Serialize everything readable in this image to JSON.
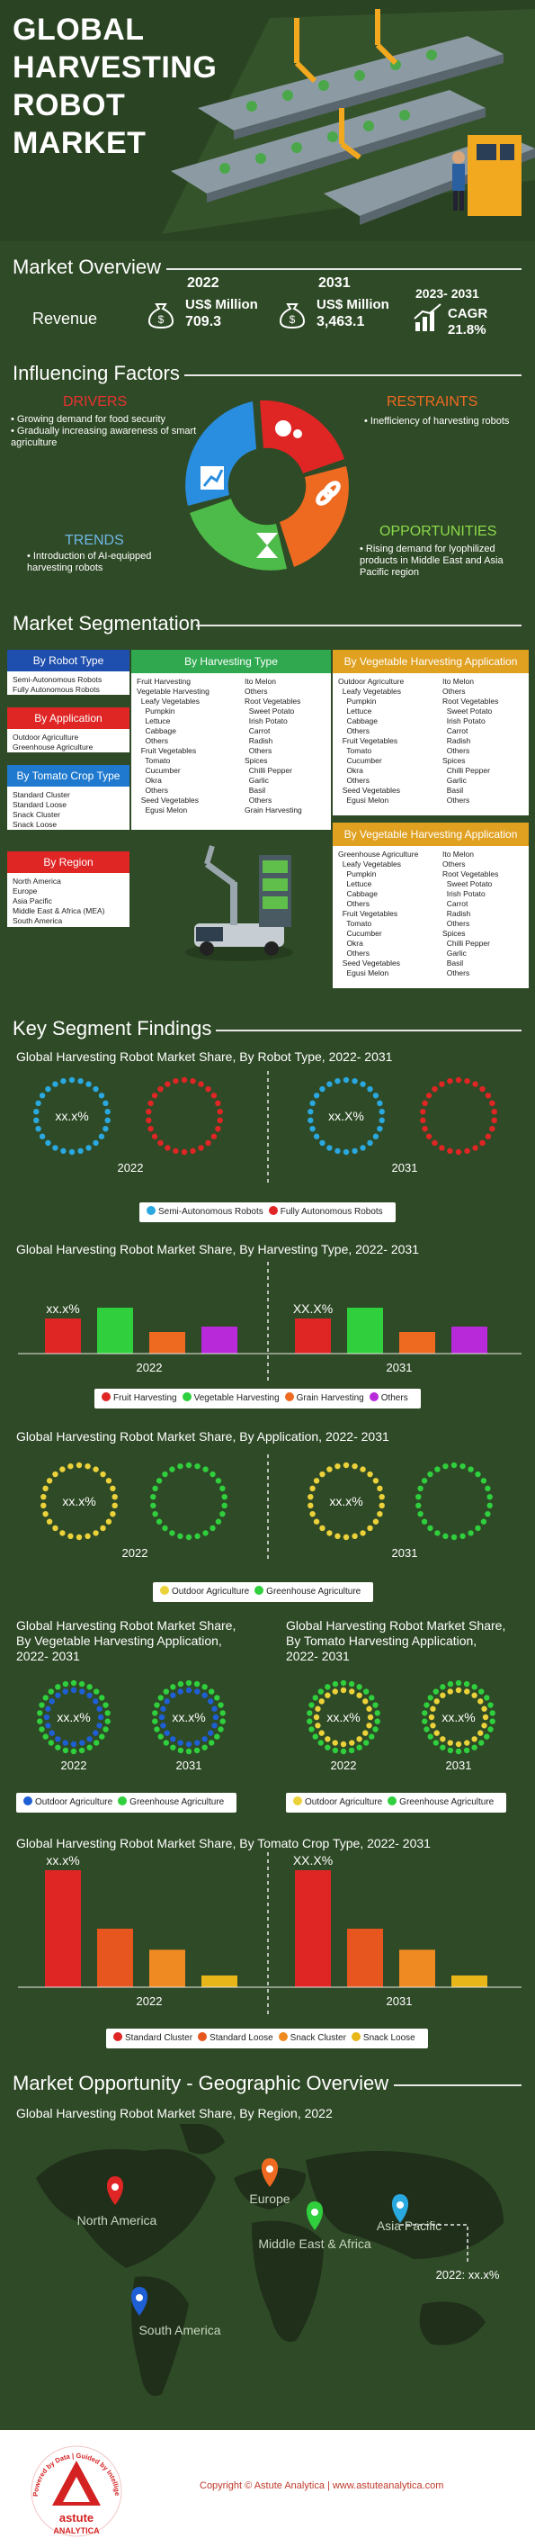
{
  "title_lines": [
    "GLOBAL",
    "HARVESTING",
    "ROBOT",
    "MARKET"
  ],
  "overview": {
    "heading": "Market Overview",
    "revenue_label": "Revenue",
    "y1": "2022",
    "y1_unit": "US$ Million",
    "y1_value": "709.3",
    "y2": "2031",
    "y2_unit": "US$ Million",
    "y2_value": "3,463.1",
    "cagr_period": "2023- 2031",
    "cagr_label": "CAGR",
    "cagr_value": "21.8%"
  },
  "factors": {
    "heading": "Influencing Factors",
    "drivers_title": "DRIVERS",
    "drivers": [
      "Growing demand for food security",
      "Gradually increasing awareness of smart agriculture"
    ],
    "restraints_title": "RESTRAINTS",
    "restraints": [
      "Inefficiency of harvesting robots"
    ],
    "trends_title": "TRENDS",
    "trends": [
      "Introduction of AI-equipped harvesting robots"
    ],
    "opportunities_title": "OPPORTUNITIES",
    "opportunities": [
      "Rising demand for lyophilized products in Middle East and Asia Pacific region"
    ]
  },
  "segmentation": {
    "heading": "Market Segmentation",
    "robot_type": {
      "title": "By Robot Type",
      "items": [
        "Semi-Autonomous Robots",
        "Fully Autonomous Robots"
      ]
    },
    "application": {
      "title": "By Application",
      "items": [
        "Outdoor Agriculture",
        "Greenhouse Agriculture"
      ]
    },
    "tomato": {
      "title": "By Tomato Crop Type",
      "items": [
        "Standard Cluster",
        "Standard Loose",
        "Snack Cluster",
        "Snack Loose"
      ]
    },
    "region": {
      "title": "By Region",
      "items": [
        "North America",
        "Europe",
        "Asia Pacific",
        "Middle East & Africa (MEA)",
        "South America"
      ]
    },
    "harvesting": {
      "title": "By Harvesting Type",
      "col1": [
        "Fruit Harvesting",
        "Vegetable Harvesting",
        "  Leafy Vegetables",
        "    Pumpkin",
        "    Lettuce",
        "    Cabbage",
        "    Others",
        "  Fruit Vegetables",
        "    Tomato",
        "    Cucumber",
        "    Okra",
        "    Others",
        "  Seed Vegetables",
        "    Egusi Melon"
      ],
      "col2": [
        "Ito Melon",
        "Others",
        "Root Vegetables",
        "  Sweet Potato",
        "  Irish Potato",
        "  Carrot",
        "  Radish",
        "  Others",
        "Spices",
        "  Chilli Pepper",
        "  Garlic",
        "  Basil",
        "  Others",
        "Grain Harvesting"
      ]
    },
    "veg1": {
      "title": "By Vegetable Harvesting Application",
      "col1": [
        "Outdoor Agriculture",
        "  Leafy Vegetables",
        "    Pumpkin",
        "    Lettuce",
        "    Cabbage",
        "    Others",
        "  Fruit Vegetables",
        "    Tomato",
        "    Cucumber",
        "    Okra",
        "    Others",
        "  Seed Vegetables",
        "    Egusi Melon"
      ],
      "col2": [
        "Ito Melon",
        "Others",
        "Root Vegetables",
        "  Sweet Potato",
        "  Irish Potato",
        "  Carrot",
        "  Radish",
        "  Others",
        "Spices",
        "  Chilli Pepper",
        "  Garlic",
        "  Basil",
        "  Others"
      ]
    },
    "veg2": {
      "title": "By Vegetable Harvesting Application",
      "col1": [
        "Greenhouse Agriculture",
        "  Leafy Vegetables",
        "    Pumpkin",
        "    Lettuce",
        "    Cabbage",
        "    Others",
        "  Fruit Vegetables",
        "    Tomato",
        "    Cucumber",
        "    Okra",
        "    Others",
        "  Seed Vegetables",
        "    Egusi Melon"
      ],
      "col2": [
        "Ito Melon",
        "Others",
        "Root Vegetables",
        "  Sweet Potato",
        "  Irish Potato",
        "  Carrot",
        "  Radish",
        "  Others",
        "Spices",
        "  Chilli Pepper",
        "  Garlic",
        "  Basil",
        "  Others"
      ]
    }
  },
  "findings": {
    "heading": "Key Segment Findings"
  },
  "geo": {
    "heading": "Market Opportunity - Geographic Overview"
  },
  "footer": {
    "brand_top": "Powered by Data | Guided by Intelligence",
    "brand": "astute",
    "brand2": "ANALYTICA",
    "copyright": "Copyright © Astute Analytica  |  www.astuteanalytica.com"
  },
  "colors": {
    "red": "#e02525",
    "green": "#2fcf3d",
    "orange": "#ee6a21",
    "purple": "#b829d9",
    "sky": "#2aa8e0",
    "yellow": "#ecd23a",
    "blue": "#1f5fd6",
    "amber": "#e8b619"
  },
  "chart_data": [
    {
      "type": "pie",
      "title": "Global Harvesting Robot Market Share, By Robot Type, 2022- 2031",
      "categories": [
        "2022",
        "2031"
      ],
      "series": [
        {
          "name": "Semi-Autonomous Robots",
          "color": "#2aa8e0"
        },
        {
          "name": "Fully Autonomous Robots",
          "color": "#e02525"
        }
      ],
      "center_label": "xx.x%",
      "center_labels": [
        "xx.x%",
        "xx.X%"
      ]
    },
    {
      "type": "bar",
      "title": "Global Harvesting Robot Market Share, By Harvesting Type, 2022- 2031",
      "categories": [
        "2022",
        "2031"
      ],
      "series": [
        {
          "name": "Fruit Harvesting",
          "color": "#e02525",
          "values": [
            65,
            65
          ]
        },
        {
          "name": "Vegetable Harvesting",
          "color": "#2fcf3d",
          "values": [
            85,
            85
          ]
        },
        {
          "name": "Grain Harvesting",
          "color": "#ee6a21",
          "values": [
            40,
            40
          ]
        },
        {
          "name": "Others",
          "color": "#b829d9",
          "values": [
            50,
            50
          ]
        }
      ],
      "label": "xx.x%",
      "labels": [
        "xx.x%",
        "XX.X%"
      ],
      "ylim": [
        0,
        100
      ]
    },
    {
      "type": "pie",
      "title": "Global Harvesting Robot Market Share, By Application, 2022- 2031",
      "categories": [
        "2022",
        "2031"
      ],
      "series": [
        {
          "name": "Outdoor Agriculture",
          "color": "#ecd23a"
        },
        {
          "name": "Greenhouse Agriculture",
          "color": "#2fcf3d"
        }
      ],
      "center_label": "xx.x%",
      "center_labels": [
        "xx.x%",
        "xx.x%"
      ]
    },
    {
      "type": "pie",
      "title": "Global Harvesting Robot Market Share, By Vegetable Harvesting Application, 2022- 2031",
      "title_lines": [
        "Global Harvesting Robot Market Share,",
        "By Vegetable Harvesting Application,",
        "2022- 2031"
      ],
      "categories": [
        "2022",
        "2031"
      ],
      "series": [
        {
          "name": "Outdoor Agriculture",
          "color": "#1f5fd6"
        },
        {
          "name": "Greenhouse Agriculture",
          "color": "#2fcf3d"
        }
      ],
      "center_label": "xx.x%",
      "center_labels": [
        "xx.x%",
        "xx.x%"
      ]
    },
    {
      "type": "pie",
      "title": "Global Harvesting Robot Market Share, By Tomato Harvesting Application, 2022- 2031",
      "title_lines": [
        "Global Harvesting Robot Market Share,",
        "By Tomato Harvesting Application,",
        "2022- 2031"
      ],
      "categories": [
        "2022",
        "2031"
      ],
      "series": [
        {
          "name": "Outdoor Agriculture",
          "color": "#ecd23a"
        },
        {
          "name": "Greenhouse Agriculture",
          "color": "#2fcf3d"
        }
      ],
      "center_label": "xx.x%",
      "center_labels": [
        "xx.x%",
        "xx.x%"
      ]
    },
    {
      "type": "bar",
      "title": "Global Harvesting Robot Market Share, By Tomato Crop Type, 2022- 2031",
      "categories": [
        "2022",
        "2031"
      ],
      "series": [
        {
          "name": "Standard Cluster",
          "color": "#e02525",
          "values": [
            100,
            100
          ]
        },
        {
          "name": "Standard Loose",
          "color": "#e8561f",
          "values": [
            50,
            50
          ]
        },
        {
          "name": "Snack Cluster",
          "color": "#ee8a21",
          "values": [
            32,
            32
          ]
        },
        {
          "name": "Snack Loose",
          "color": "#e8b619",
          "values": [
            10,
            10
          ]
        }
      ],
      "label": "xx.x%",
      "labels": [
        "xx.x%",
        "XX.X%"
      ],
      "ylim": [
        0,
        100
      ]
    },
    {
      "type": "map",
      "title": "Global Harvesting Robot Market Share, By Region, 2022",
      "regions": [
        {
          "name": "North America",
          "color": "#e02525"
        },
        {
          "name": "Europe",
          "color": "#ee6a21"
        },
        {
          "name": "Middle East & Africa",
          "color": "#2fcf3d"
        },
        {
          "name": "Asia Pacific",
          "color": "#2aa8e0"
        },
        {
          "name": "South America",
          "color": "#1f5fd6"
        }
      ],
      "callout": "2022: xx.x%"
    }
  ]
}
